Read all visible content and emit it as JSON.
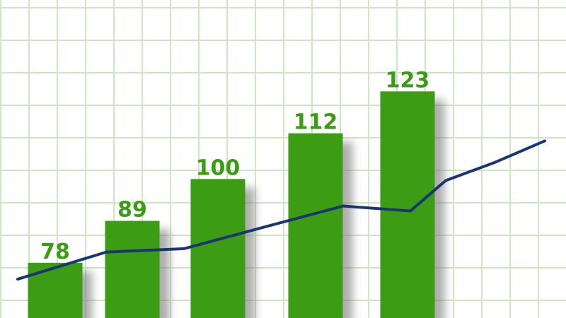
{
  "chart_data": [
    {
      "type": "bar",
      "x": [
        0.78,
        1.87,
        3.08,
        4.46,
        5.76
      ],
      "values": [
        78,
        89,
        100,
        112,
        123
      ],
      "color": "#3c9c14",
      "xlim": [
        0,
        8
      ],
      "ylim": [
        63.5,
        147
      ],
      "value_label_color": "#3c9c14",
      "shadow": true
    },
    {
      "type": "line",
      "x": [
        0.25,
        1.5,
        2.6,
        3.8,
        4.85,
        5.8,
        6.3,
        7.0,
        7.7
      ],
      "values": [
        73.7,
        80.8,
        81.7,
        87.7,
        92.9,
        91.6,
        99.6,
        104.4,
        110.0
      ],
      "color": "#1a3670",
      "xlim": [
        0,
        8
      ],
      "ylim": [
        63.5,
        147
      ]
    }
  ]
}
